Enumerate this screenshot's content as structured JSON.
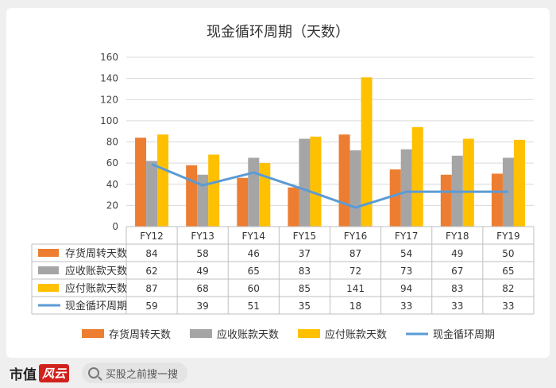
{
  "footer": {
    "brand": "市值",
    "brand_mark": "风云",
    "search_text": "买股之前搜一搜"
  },
  "chart_data": {
    "type": "bar",
    "title": "现金循环周期（天数）",
    "categories": [
      "FY12",
      "FY13",
      "FY14",
      "FY15",
      "FY16",
      "FY17",
      "FY18",
      "FY19"
    ],
    "y_ticks": [
      0,
      20,
      40,
      60,
      80,
      100,
      120,
      140,
      160
    ],
    "ylim": [
      0,
      160
    ],
    "grid": true,
    "legend_position": "bottom",
    "series": [
      {
        "name": "存货周转天数",
        "type": "bar",
        "color": "#ed7d31",
        "values": [
          84,
          58,
          46,
          37,
          87,
          54,
          49,
          50
        ]
      },
      {
        "name": "应收账款天数",
        "type": "bar",
        "color": "#a5a5a5",
        "values": [
          62,
          49,
          65,
          83,
          72,
          73,
          67,
          65
        ]
      },
      {
        "name": "应付账款天数",
        "type": "bar",
        "color": "#ffc000",
        "values": [
          87,
          68,
          60,
          85,
          141,
          94,
          83,
          82
        ]
      },
      {
        "name": "现金循环周期",
        "type": "line",
        "color": "#5b9bd5",
        "values": [
          59,
          39,
          51,
          35,
          18,
          33,
          33,
          33
        ]
      }
    ]
  }
}
